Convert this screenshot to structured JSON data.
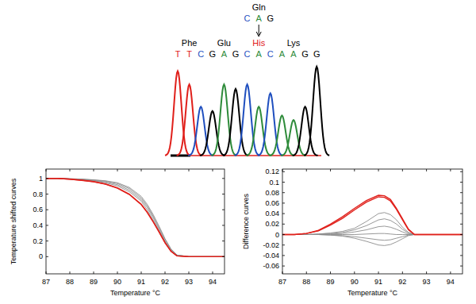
{
  "chromatogram": {
    "codons": [
      {
        "amino_acid": "Phe",
        "codon": "TTC",
        "label_color": "#000000"
      },
      {
        "amino_acid": "Glu",
        "codon": "GAG",
        "label_color": "#000000"
      },
      {
        "amino_acid": "His",
        "codon": "CAC",
        "label_color": "#e0201b"
      },
      {
        "amino_acid": "Lys",
        "codon": "AAG",
        "label_color": "#000000"
      }
    ],
    "trailing_base": "G",
    "mutation": {
      "codon_index": 2,
      "from_amino_acid": "Gln",
      "from_codon": "CAG"
    },
    "base_colors": {
      "A": "#2e8b3a",
      "C": "#1f4fbf",
      "G": "#000000",
      "T": "#e0201b"
    },
    "peaks": [
      {
        "base": "T",
        "height": 0.95
      },
      {
        "base": "T",
        "height": 0.8
      },
      {
        "base": "C",
        "height": 0.55
      },
      {
        "base": "G",
        "height": 0.5
      },
      {
        "base": "A",
        "height": 0.8
      },
      {
        "base": "G",
        "height": 0.75
      },
      {
        "base": "C",
        "height": 0.8
      },
      {
        "base": "A",
        "height": 0.55
      },
      {
        "base": "C",
        "height": 0.7
      },
      {
        "base": "A",
        "height": 0.45
      },
      {
        "base": "A",
        "height": 0.4
      },
      {
        "base": "G",
        "height": 0.55
      },
      {
        "base": "G",
        "height": 1.0
      }
    ]
  },
  "chart_data": [
    {
      "type": "line",
      "x_label": "Temperature °C",
      "y_label": "Temperature shifted curves",
      "x": [
        87,
        87.5,
        88,
        88.5,
        89,
        89.5,
        90,
        90.5,
        91,
        91.25,
        91.5,
        91.75,
        92,
        92.25,
        92.5,
        93,
        93.5,
        94,
        94.5
      ],
      "xlim": [
        87,
        94.5
      ],
      "xticks": [
        87,
        88,
        89,
        90,
        91,
        92,
        93,
        94
      ],
      "ylim": [
        -0.22,
        1.12
      ],
      "yticks": [
        0,
        0.2,
        0.4,
        0.6,
        0.8,
        1
      ],
      "grid": false,
      "series": [
        {
          "color": "#8c8c8c",
          "values": [
            1,
            1,
            0.995,
            0.99,
            0.98,
            0.965,
            0.935,
            0.87,
            0.75,
            0.65,
            0.52,
            0.37,
            0.22,
            0.09,
            0.02,
            0,
            0,
            0,
            0
          ]
        },
        {
          "color": "#8c8c8c",
          "values": [
            1,
            1,
            0.995,
            0.988,
            0.975,
            0.955,
            0.92,
            0.85,
            0.73,
            0.63,
            0.5,
            0.35,
            0.2,
            0.08,
            0.02,
            0,
            0,
            0,
            0
          ]
        },
        {
          "color": "#8c8c8c",
          "values": [
            1,
            1,
            0.993,
            0.985,
            0.97,
            0.945,
            0.905,
            0.83,
            0.71,
            0.6,
            0.47,
            0.33,
            0.19,
            0.07,
            0.01,
            0,
            0,
            0,
            0
          ]
        },
        {
          "color": "#8c8c8c",
          "values": [
            1,
            1,
            0.996,
            0.992,
            0.983,
            0.97,
            0.945,
            0.885,
            0.77,
            0.67,
            0.54,
            0.39,
            0.23,
            0.1,
            0.02,
            0,
            0,
            0,
            0
          ]
        },
        {
          "color": "#e0201b",
          "values": [
            1,
            1,
            0.99,
            0.978,
            0.96,
            0.93,
            0.88,
            0.8,
            0.67,
            0.57,
            0.45,
            0.32,
            0.18,
            0.07,
            0.01,
            0,
            0,
            0,
            0
          ]
        },
        {
          "color": "#e0201b",
          "values": [
            1,
            1,
            0.99,
            0.976,
            0.957,
            0.926,
            0.876,
            0.795,
            0.665,
            0.565,
            0.445,
            0.315,
            0.178,
            0.068,
            0.01,
            0,
            0,
            0,
            0
          ]
        }
      ]
    },
    {
      "type": "line",
      "x_label": "Temperature °C",
      "y_label": "Difference curves",
      "x": [
        87,
        87.5,
        88,
        88.5,
        89,
        89.5,
        90,
        90.5,
        91,
        91.25,
        91.5,
        91.75,
        92,
        92.25,
        92.5,
        93,
        93.5,
        94,
        94.5
      ],
      "xlim": [
        87,
        94.5
      ],
      "xticks": [
        87,
        88,
        89,
        90,
        91,
        92,
        93,
        94
      ],
      "ylim": [
        -0.075,
        0.125
      ],
      "yticks": [
        -0.06,
        -0.04,
        -0.02,
        0,
        0.02,
        0.04,
        0.06,
        0.08,
        0.1,
        0.12
      ],
      "grid": false,
      "series": [
        {
          "color": "#8c8c8c",
          "values": [
            0,
            0,
            0,
            0.001,
            0.003,
            0.006,
            0.012,
            0.025,
            0.04,
            0.042,
            0.038,
            0.028,
            0.014,
            0.004,
            0,
            0,
            0,
            0,
            0
          ]
        },
        {
          "color": "#8c8c8c",
          "values": [
            0,
            0,
            0,
            0.001,
            0.002,
            0.004,
            0.009,
            0.017,
            0.028,
            0.03,
            0.027,
            0.02,
            0.01,
            0.003,
            0,
            0,
            0,
            0,
            0
          ]
        },
        {
          "color": "#8c8c8c",
          "values": [
            0,
            0,
            0,
            0,
            0.001,
            0.002,
            0.005,
            0.009,
            0.015,
            0.016,
            0.014,
            0.01,
            0.005,
            0.001,
            0,
            0,
            0,
            0,
            0
          ]
        },
        {
          "color": "#8c8c8c",
          "values": [
            0,
            0,
            0,
            0,
            0,
            0,
            0,
            0.001,
            0.002,
            0.002,
            0.001,
            0,
            0,
            0,
            0,
            0,
            0,
            0,
            0
          ]
        },
        {
          "color": "#8c8c8c",
          "values": [
            0,
            0,
            0,
            0,
            -0.001,
            -0.002,
            -0.004,
            -0.007,
            -0.01,
            -0.011,
            -0.01,
            -0.007,
            -0.004,
            -0.001,
            0,
            0,
            0,
            0,
            0
          ]
        },
        {
          "color": "#8c8c8c",
          "values": [
            0,
            0,
            0,
            0,
            -0.001,
            -0.003,
            -0.007,
            -0.013,
            -0.02,
            -0.021,
            -0.019,
            -0.014,
            -0.008,
            -0.002,
            0,
            0,
            0,
            0,
            0
          ]
        },
        {
          "color": "#e0201b",
          "values": [
            0,
            0,
            0.002,
            0.008,
            0.02,
            0.034,
            0.05,
            0.065,
            0.075,
            0.074,
            0.067,
            0.05,
            0.03,
            0.01,
            0,
            0,
            0,
            0,
            0
          ]
        },
        {
          "color": "#e0201b",
          "values": [
            0,
            0,
            0.002,
            0.007,
            0.018,
            0.031,
            0.047,
            0.062,
            0.072,
            0.071,
            0.064,
            0.048,
            0.028,
            0.009,
            0,
            0,
            0,
            0,
            0
          ]
        }
      ]
    }
  ]
}
